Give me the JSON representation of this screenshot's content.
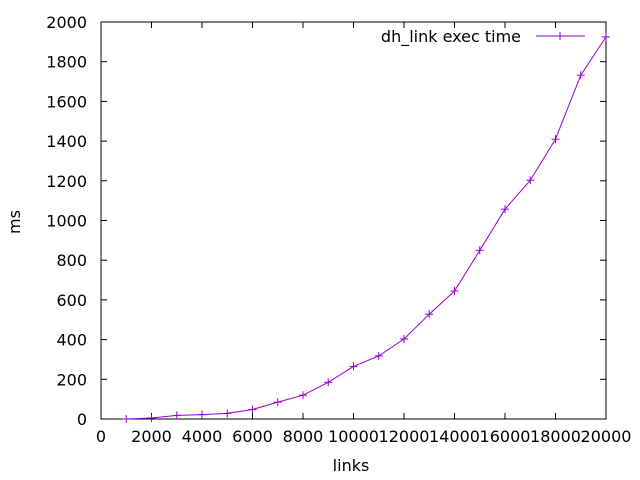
{
  "chart_data": {
    "type": "line",
    "title": "",
    "xlabel": "links",
    "ylabel": "ms",
    "xlim": [
      0,
      20000
    ],
    "ylim": [
      0,
      2000
    ],
    "xticks": [
      0,
      2000,
      4000,
      6000,
      8000,
      10000,
      12000,
      14000,
      16000,
      18000,
      20000
    ],
    "yticks": [
      0,
      200,
      400,
      600,
      800,
      1000,
      1200,
      1400,
      1600,
      1800,
      2000
    ],
    "grid": false,
    "legend": "top-right",
    "marker": "plus",
    "series": [
      {
        "name": "dh_link exec time",
        "color": "#9400d3",
        "x": [
          1000,
          2000,
          3000,
          4000,
          5000,
          6000,
          7000,
          8000,
          9000,
          10000,
          11000,
          12000,
          13000,
          14000,
          15000,
          16000,
          17000,
          18000,
          19000,
          20000
        ],
        "y": [
          0,
          5,
          18,
          22,
          28,
          48,
          85,
          120,
          185,
          265,
          318,
          403,
          528,
          645,
          850,
          1057,
          1203,
          1410,
          1732,
          1925
        ]
      }
    ]
  }
}
